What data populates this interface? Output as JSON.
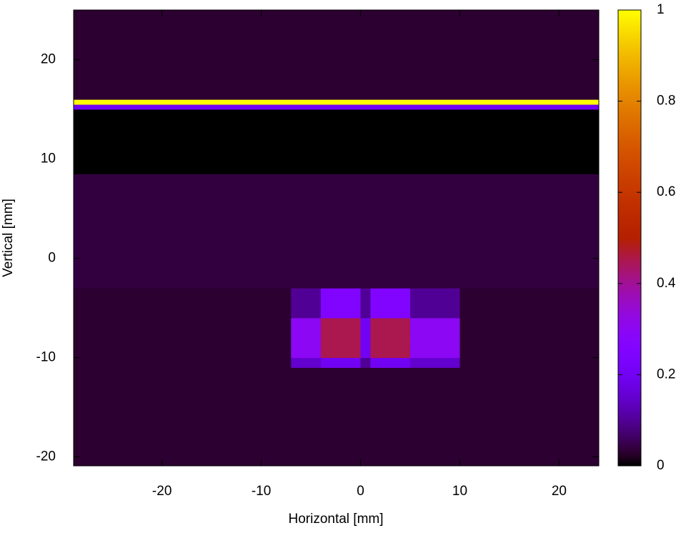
{
  "chart_data": {
    "type": "heatmap",
    "xlabel": "Horizontal [mm]",
    "ylabel": "Vertical [mm]",
    "xlim": [
      -28.9,
      24
    ],
    "ylim": [
      -20.9,
      25
    ],
    "xticks": [
      -20,
      -10,
      0,
      10,
      20
    ],
    "yticks": [
      -20,
      -10,
      0,
      10,
      20
    ],
    "x_edges": [
      -28.9,
      -7,
      -4,
      0,
      1,
      5,
      10,
      24
    ],
    "y_edges": [
      -20.9,
      -11,
      -10,
      -8,
      -6,
      -3,
      8.5,
      15,
      15.5,
      16,
      25
    ],
    "z": [
      [
        0.03,
        0.03,
        0.03,
        0.03,
        0.03,
        0.03,
        0.03
      ],
      [
        0.03,
        0.15,
        0.2,
        0.1,
        0.2,
        0.15,
        0.03
      ],
      [
        0.03,
        0.3,
        0.45,
        0.2,
        0.45,
        0.3,
        0.03
      ],
      [
        0.03,
        0.3,
        0.45,
        0.2,
        0.45,
        0.3,
        0.03
      ],
      [
        0.03,
        0.1,
        0.25,
        0.1,
        0.25,
        0.1,
        0.03
      ],
      [
        0.04,
        0.04,
        0.04,
        0.04,
        0.04,
        0.04,
        0.04
      ],
      [
        0,
        0,
        0,
        0,
        0,
        0,
        0
      ],
      [
        0.2,
        0.2,
        0.2,
        0.2,
        0.2,
        0.2,
        0.2
      ],
      [
        1,
        1,
        1,
        1,
        1,
        1,
        1
      ],
      [
        0.03,
        0.03,
        0.03,
        0.03,
        0.03,
        0.03,
        0.03
      ]
    ],
    "zlim": [
      0,
      1
    ],
    "zticks": [
      0,
      0.2,
      0.4,
      0.6,
      0.8,
      1
    ],
    "colormap": "gnuplot"
  }
}
